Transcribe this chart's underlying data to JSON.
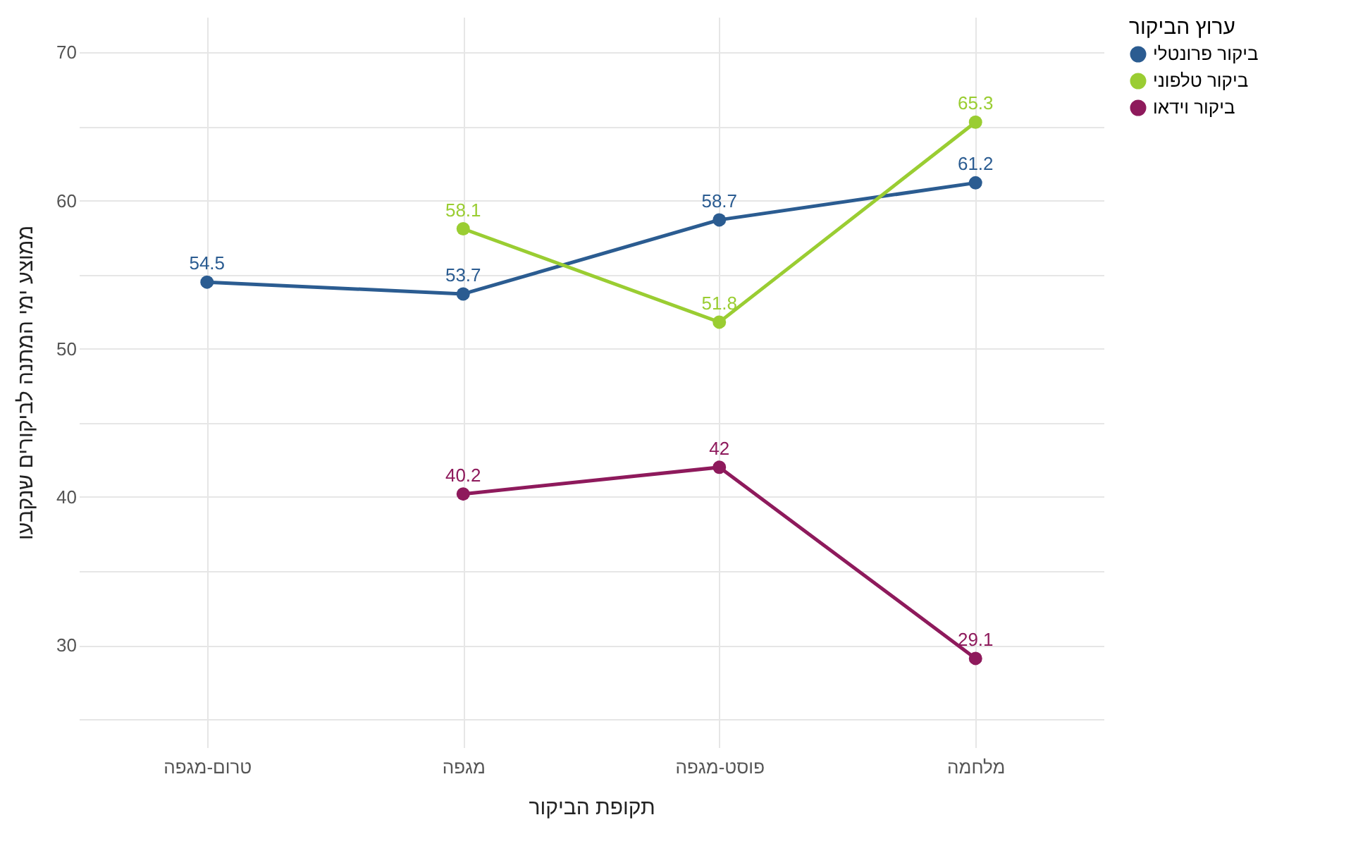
{
  "chart_data": {
    "type": "line",
    "xlabel": "תקופת הביקור",
    "ylabel": "ממוצע ימי המתנה לביקורים שנקבעו",
    "legend_title": "ערוץ הביקור",
    "categories": [
      "טרום-מגפה",
      "מגפה",
      "פוסט-מגפה",
      "מלחמה"
    ],
    "series": [
      {
        "name": "ביקור פרונטלי",
        "color": "#2b5c91",
        "values": [
          54.5,
          53.7,
          58.7,
          61.2
        ]
      },
      {
        "name": "ביקור טלפוני",
        "color": "#9acd32",
        "values": [
          null,
          58.1,
          51.8,
          65.3
        ]
      },
      {
        "name": "ביקור וידאו",
        "color": "#8e1a5c",
        "values": [
          null,
          40.2,
          42,
          29.1
        ]
      }
    ],
    "ylim": [
      23.1,
      72.4
    ],
    "yticks": [
      {
        "value": 25,
        "label": null
      },
      30,
      {
        "value": 35,
        "label": null
      },
      40,
      {
        "value": 45,
        "label": null
      },
      50,
      {
        "value": 55,
        "label": null
      },
      60,
      {
        "value": 65,
        "label": null
      },
      70
    ],
    "grid": true,
    "legend": "right",
    "marker": "circle",
    "line_style": "solid",
    "data_labels": true
  }
}
